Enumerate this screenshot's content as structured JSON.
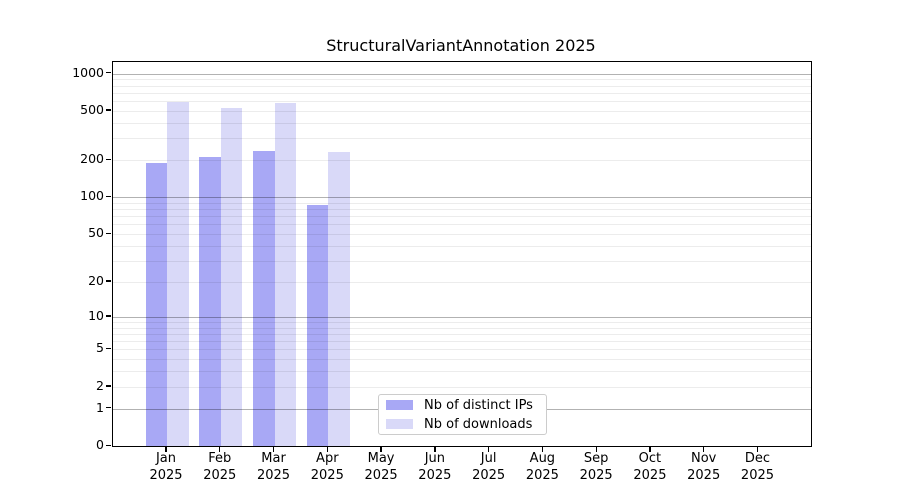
{
  "title": "StructuralVariantAnnotation 2025",
  "colors": {
    "ips": "#a8a8f5",
    "downloads": "#d9d9f8",
    "axis": "#000000",
    "grid_major": "#b3b3b3",
    "grid_minor": "#ececec",
    "background": "#ffffff",
    "legend_border": "#cccccc"
  },
  "legend": {
    "items": [
      {
        "label": "Nb of distinct IPs",
        "color_key": "ips"
      },
      {
        "label": "Nb of downloads",
        "color_key": "downloads"
      }
    ]
  },
  "chart_data": {
    "type": "bar",
    "title": "StructuralVariantAnnotation 2025",
    "xlabel": "",
    "ylabel": "",
    "scale": "log10(value+1)",
    "grid": "on",
    "legend_position": "bottom-center-inside",
    "year": "2025",
    "categories": [
      "Jan",
      "Feb",
      "Mar",
      "Apr",
      "May",
      "Jun",
      "Jul",
      "Aug",
      "Sep",
      "Oct",
      "Nov",
      "Dec"
    ],
    "yticks": [
      0,
      1,
      2,
      5,
      10,
      20,
      50,
      100,
      200,
      500,
      1000
    ],
    "ylim": [
      0,
      1240
    ],
    "series": [
      {
        "name": "Nb of distinct IPs",
        "color_key": "ips",
        "values": [
          190,
          212,
          238,
          87,
          null,
          null,
          null,
          null,
          null,
          null,
          null,
          null
        ]
      },
      {
        "name": "Nb of downloads",
        "color_key": "downloads",
        "values": [
          595,
          528,
          577,
          232,
          null,
          null,
          null,
          null,
          null,
          null,
          null,
          null
        ]
      }
    ]
  }
}
